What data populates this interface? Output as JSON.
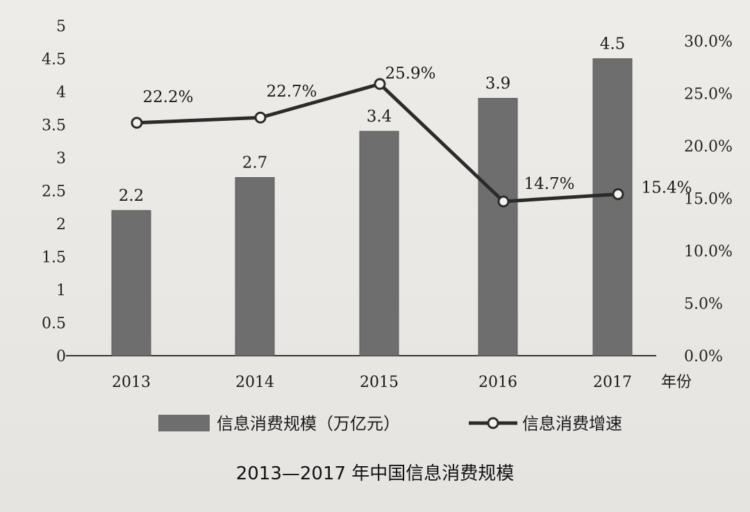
{
  "chart_data": {
    "type": "bar",
    "title": "2013—2017 年中国信息消费规模",
    "xlabel": "年份",
    "categories": [
      "2013",
      "2014",
      "2015",
      "2016",
      "2017"
    ],
    "series": [
      {
        "name": "信息消费规模（万亿元）",
        "type": "bar",
        "axis": "left",
        "values": [
          2.2,
          2.7,
          3.4,
          3.9,
          4.5
        ],
        "labels": [
          "2.2",
          "2.7",
          "3.4",
          "3.9",
          "4.5"
        ],
        "color": "#6e6e6e"
      },
      {
        "name": "信息消费增速",
        "type": "line",
        "axis": "right",
        "values": [
          22.2,
          22.7,
          25.9,
          14.7,
          15.4
        ],
        "labels": [
          "22.2%",
          "22.7%",
          "25.9%",
          "14.7%",
          "15.4%"
        ],
        "color": "#2b2b2b"
      }
    ],
    "y_left": {
      "ylim": [
        0,
        5
      ],
      "ticks": [
        "0",
        "0.5",
        "1",
        "1.5",
        "2",
        "2.5",
        "3",
        "3.5",
        "4",
        "4.5",
        "5"
      ]
    },
    "y_right": {
      "ylim": [
        0,
        30
      ],
      "ticks": [
        "0.0%",
        "5.0%",
        "10.0%",
        "15.0%",
        "20.0%",
        "25.0%",
        "30.0%"
      ]
    },
    "grid": false,
    "legend": "bottom-center"
  }
}
